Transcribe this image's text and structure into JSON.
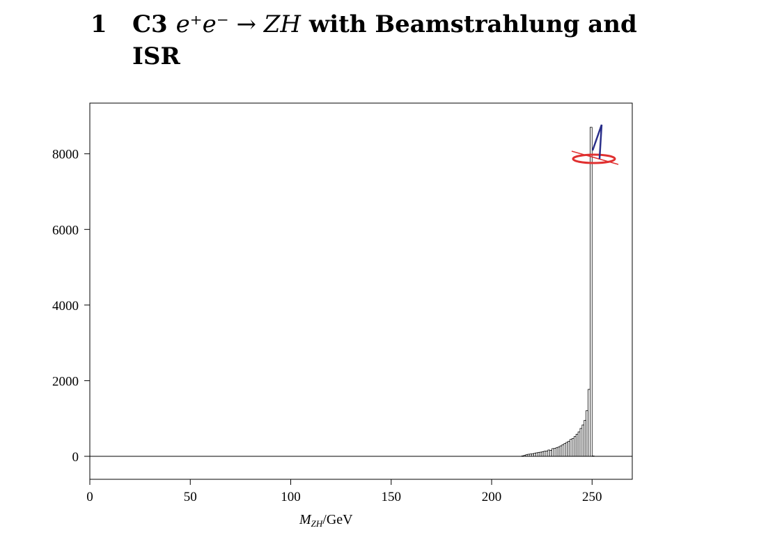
{
  "heading": {
    "number": "1",
    "text_before": "C3",
    "process": "e⁺e⁻ → ZH",
    "text_after": "with Beamstrahlung and ISR"
  },
  "chart_data": {
    "type": "bar",
    "xlabel": "M_ZH/GeV",
    "xlabel_main": "M",
    "xlabel_sub": "ZH",
    "xlabel_unit": "/GeV",
    "xlim": [
      0,
      270
    ],
    "ylim": [
      -608,
      9340
    ],
    "xticks": [
      "0",
      "50",
      "100",
      "150",
      "200",
      "250"
    ],
    "yticks": [
      "0",
      "2000",
      "4000",
      "6000",
      "8000"
    ],
    "bin_width": 1,
    "bins": [
      215,
      216,
      217,
      218,
      219,
      220,
      221,
      222,
      223,
      224,
      225,
      226,
      227,
      228,
      229,
      230,
      231,
      232,
      233,
      234,
      235,
      236,
      237,
      238,
      239,
      240,
      241,
      242,
      243,
      244,
      245,
      246,
      247,
      248,
      249,
      250
    ],
    "values": [
      12,
      25,
      43,
      55,
      61,
      68,
      80,
      92,
      104,
      110,
      123,
      135,
      141,
      166,
      154,
      203,
      209,
      227,
      246,
      276,
      307,
      338,
      369,
      399,
      448,
      473,
      522,
      584,
      645,
      737,
      829,
      952,
      1210,
      1770,
      8700,
      10
    ],
    "bar_fill": "#ffffff",
    "bar_stroke": "#000000",
    "logo_colors": {
      "red": "#e03030",
      "blue": "#2a2f8a"
    }
  }
}
